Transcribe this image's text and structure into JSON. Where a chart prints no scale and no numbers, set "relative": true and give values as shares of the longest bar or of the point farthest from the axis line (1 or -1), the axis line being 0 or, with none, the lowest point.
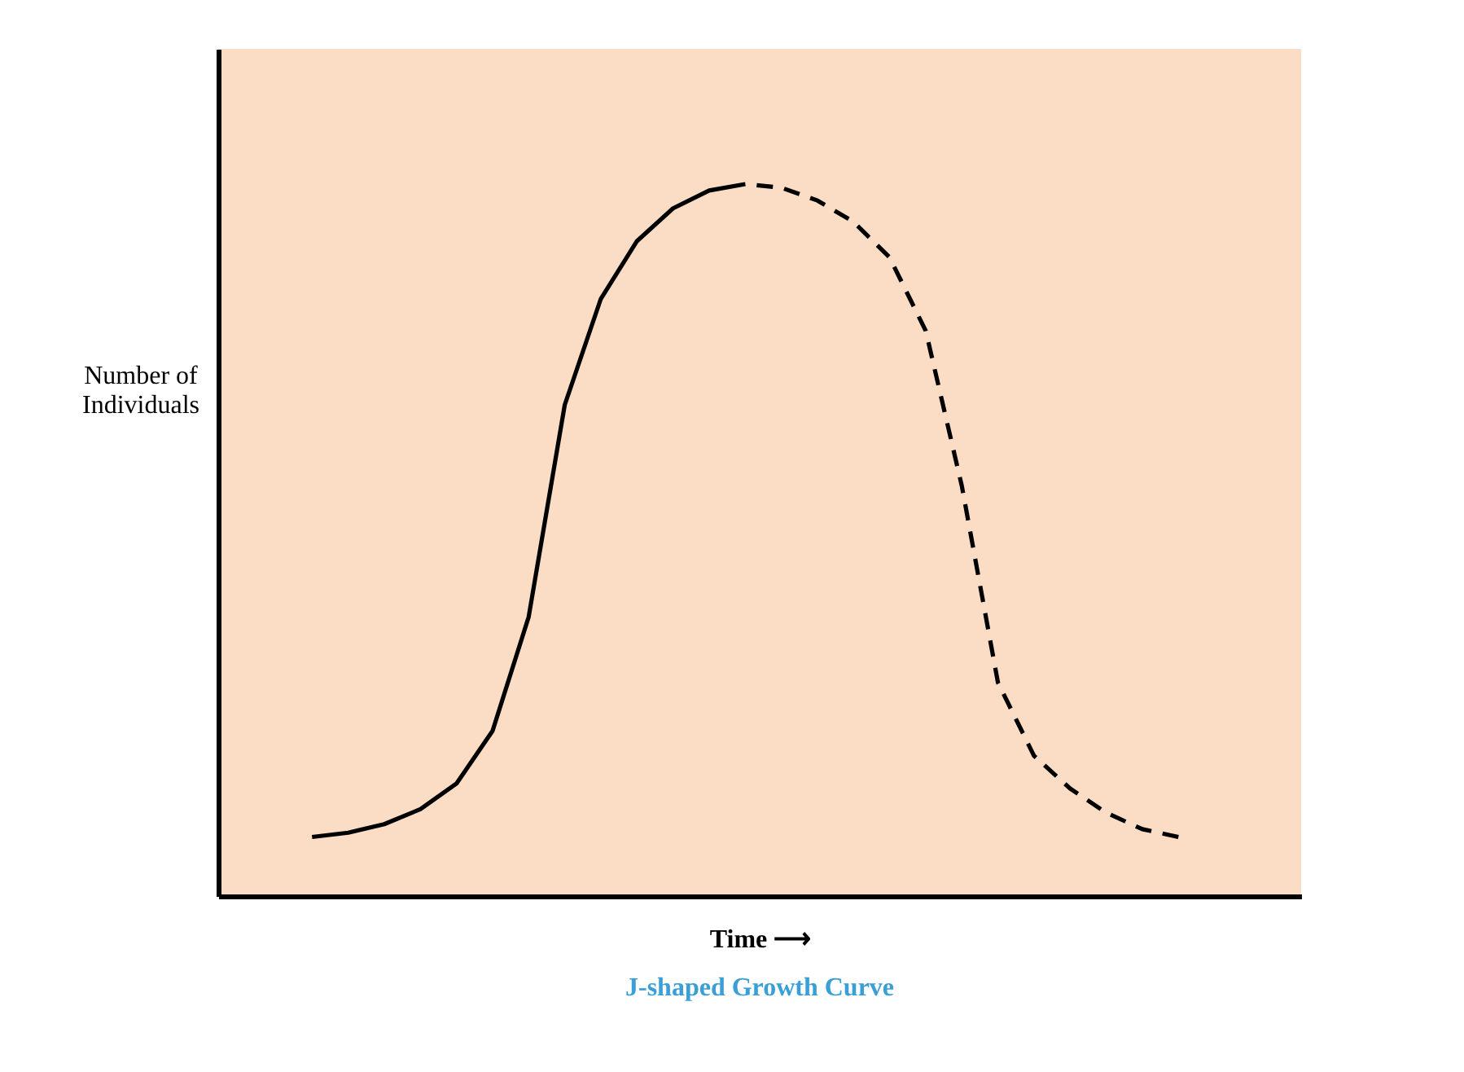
{
  "chart_data": {
    "type": "line",
    "relative": true,
    "title": "J-shaped Growth Curve",
    "xlabel": "Time ⟶",
    "ylabel": "Number of Individuals",
    "categories": [
      null,
      null,
      null,
      null,
      null,
      null,
      null,
      null,
      null,
      null,
      null,
      null,
      null,
      null,
      null,
      null,
      null,
      null,
      null,
      null,
      null,
      null,
      null,
      null,
      null
    ],
    "series": [
      {
        "color": "#000000",
        "line_style": "solid",
        "values": [
          0.083,
          0.089,
          0.101,
          0.122,
          0.158,
          0.232,
          0.392,
          0.69,
          0.839,
          0.92,
          0.966,
          0.991,
          1.0,
          null,
          null,
          null,
          null,
          null,
          null,
          null,
          null,
          null,
          null,
          null,
          null
        ]
      },
      {
        "color": "#000000",
        "line_style": "dashed",
        "values": [
          null,
          null,
          null,
          null,
          null,
          null,
          null,
          null,
          null,
          null,
          null,
          null,
          1.0,
          0.995,
          0.977,
          0.947,
          0.897,
          0.794,
          0.576,
          0.3,
          0.197,
          0.151,
          0.117,
          0.094,
          0.083
        ]
      }
    ],
    "grid": false,
    "marker": "none",
    "tick_labels": false
  }
}
